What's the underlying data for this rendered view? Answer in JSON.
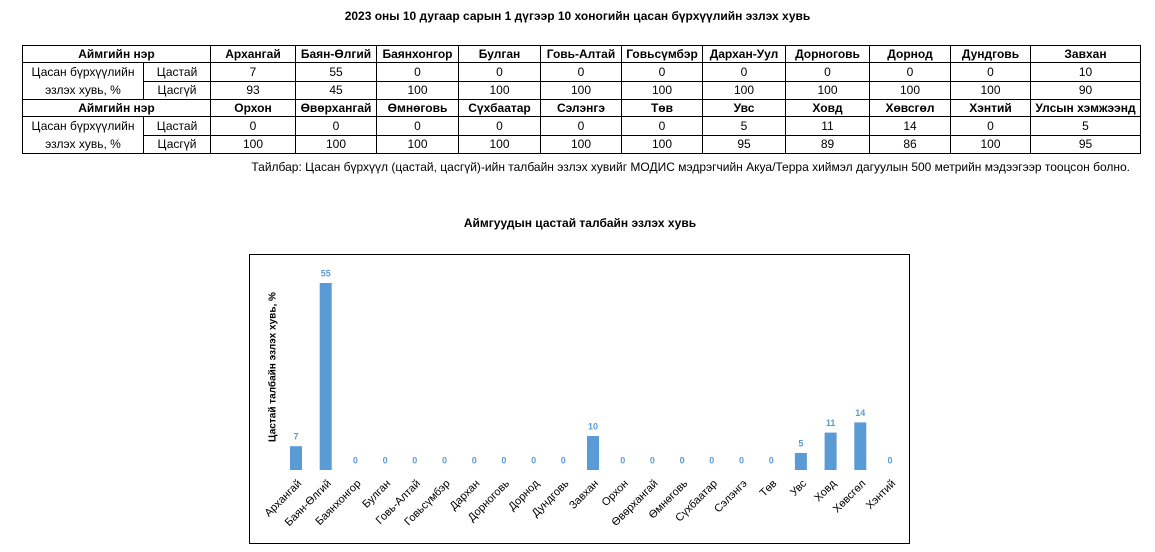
{
  "title": "2023 оны 10 дугаар сарын 1 дүгээр 10 хоногийн цасан бүрхүүлийн эзлэх хувь",
  "table": {
    "groups": [
      {
        "name_label": "Аймгийн нэр",
        "columns": [
          "Архангай",
          "Баян-Өлгий",
          "Баянхонгор",
          "Булган",
          "Говь-Алтай",
          "Говьсүмбэр",
          "Дархан-Уул",
          "Дорноговь",
          "Дорнод",
          "Дундговь",
          "Завхан"
        ],
        "row_label": "Цасан бүрхүүлийн эзлэх хувь, %",
        "rows": [
          {
            "label": "Цастай",
            "values": [
              7,
              55,
              0,
              0,
              0,
              0,
              0,
              0,
              0,
              0,
              10
            ]
          },
          {
            "label": "Цасгүй",
            "values": [
              93,
              45,
              100,
              100,
              100,
              100,
              100,
              100,
              100,
              100,
              90
            ]
          }
        ]
      },
      {
        "name_label": "Аймгийн нэр",
        "columns": [
          "Орхон",
          "Өвөрхангай",
          "Өмнөговь",
          "Сүхбаатар",
          "Сэлэнгэ",
          "Төв",
          "Увс",
          "Ховд",
          "Хөвсгөл",
          "Хэнтий",
          "Улсын хэмжээнд"
        ],
        "row_label": "Цасан бүрхүүлийн эзлэх хувь, %",
        "rows": [
          {
            "label": "Цастай",
            "values": [
              0,
              0,
              0,
              0,
              0,
              0,
              5,
              11,
              14,
              0,
              5
            ]
          },
          {
            "label": "Цасгүй",
            "values": [
              100,
              100,
              100,
              100,
              100,
              100,
              95,
              89,
              86,
              100,
              95
            ]
          }
        ]
      }
    ]
  },
  "note": "Тайлбар: Цасан бүрхүүл (цастай, цасгүй)-ийн талбайн эзлэх хувийг МОДИС мэдрэгчийн Акуа/Терра хиймэл дагуулын 500 метрийн мэдээгээр тооцсон болно.",
  "chart_data": {
    "type": "bar",
    "title": "Аймгуудын цастай талбайн эзлэх хувь",
    "y_label": "Цастай талбайн эзлэх хувь, %",
    "categories": [
      "Архангай",
      "Баян-Өлгий",
      "Баянхонгор",
      "Булган",
      "Говь-Алтай",
      "Говьсүмбэр",
      "Дархан",
      "Дорноговь",
      "Дорнод",
      "Дундговь",
      "Завхан",
      "Орхон",
      "Өвөрхангай",
      "Өмнөговь",
      "Сүхбаатар",
      "Сэлэнгэ",
      "Төв",
      "Увс",
      "Ховд",
      "Хөвсгөл",
      "Хэнтий"
    ],
    "values": [
      7,
      55,
      0,
      0,
      0,
      0,
      0,
      0,
      0,
      0,
      10,
      0,
      0,
      0,
      0,
      0,
      0,
      5,
      11,
      14,
      0
    ],
    "color": "#5b9bd5",
    "ylim": [
      0,
      60
    ]
  }
}
